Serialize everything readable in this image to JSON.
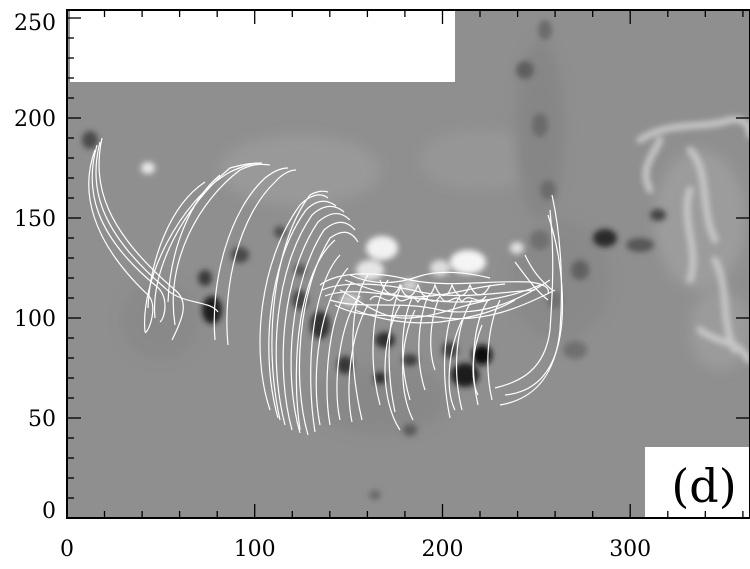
{
  "figure": {
    "panel_label": "(d)",
    "x_ticks": [
      "0",
      "100",
      "200",
      "300"
    ],
    "y_ticks": [
      "0",
      "50",
      "100",
      "150",
      "200",
      "250"
    ],
    "x_range": [
      0,
      363
    ],
    "y_range": [
      0,
      254
    ],
    "background_gray": "#8f8f8f",
    "line_color": "#ffffff"
  }
}
